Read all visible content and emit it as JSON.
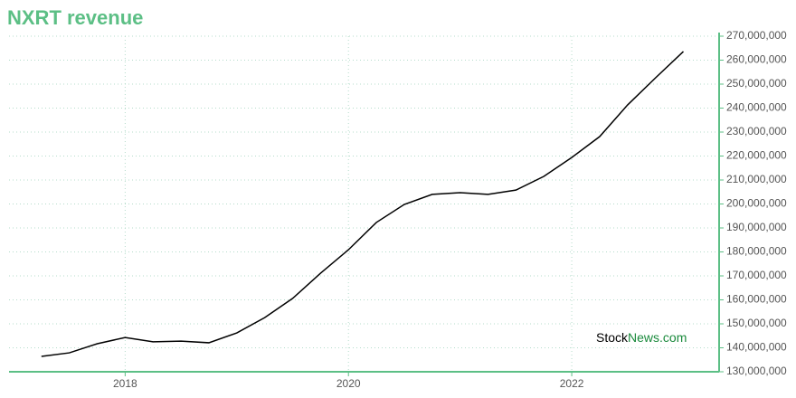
{
  "chart_data": {
    "type": "line",
    "title": "NXRT revenue",
    "watermark": [
      "Stock",
      "News.com"
    ],
    "x": [
      2017.25,
      2017.5,
      2017.75,
      2018.0,
      2018.25,
      2018.5,
      2018.75,
      2019.0,
      2019.25,
      2019.5,
      2019.75,
      2020.0,
      2020.25,
      2020.5,
      2020.75,
      2021.0,
      2021.25,
      2021.5,
      2021.75,
      2022.0,
      2022.25,
      2022.5,
      2022.75,
      2023.0
    ],
    "series": [
      {
        "name": "NXRT revenue",
        "color": "#000000",
        "values": [
          136400000,
          137900000,
          141700000,
          144300000,
          142500000,
          142800000,
          142100000,
          146200000,
          152600000,
          160600000,
          171100000,
          180900000,
          192300000,
          199800000,
          204000000,
          204700000,
          204000000,
          205800000,
          211500000,
          219400000,
          228100000,
          241300000,
          252600000,
          263600000
        ]
      }
    ],
    "xlim": [
      2016.96,
      2023.32
    ],
    "xticks": [
      2018,
      2020,
      2022
    ],
    "ylim": [
      130000000,
      270000000
    ],
    "yticks": [
      {
        "value": 130000000,
        "label": "130,000,000"
      },
      {
        "value": 140000000,
        "label": "140,000,000"
      },
      {
        "value": 150000000,
        "label": "150,000,000"
      },
      {
        "value": 160000000,
        "label": "160,000,000"
      },
      {
        "value": 170000000,
        "label": "170,000,000"
      },
      {
        "value": 180000000,
        "label": "180,000,000"
      },
      {
        "value": 190000000,
        "label": "190,000,000"
      },
      {
        "value": 200000000,
        "label": "200,000,000"
      },
      {
        "value": 210000000,
        "label": "210,000,000"
      },
      {
        "value": 220000000,
        "label": "220,000,000"
      },
      {
        "value": 230000000,
        "label": "230,000,000"
      },
      {
        "value": 240000000,
        "label": "240,000,000"
      },
      {
        "value": 250000000,
        "label": "250,000,000"
      },
      {
        "value": 260000000,
        "label": "260,000,000"
      },
      {
        "value": 270000000,
        "label": "270,000,000"
      }
    ],
    "grid": true,
    "axis_color": "#5cbf85",
    "grid_color": "#b5dccb"
  }
}
